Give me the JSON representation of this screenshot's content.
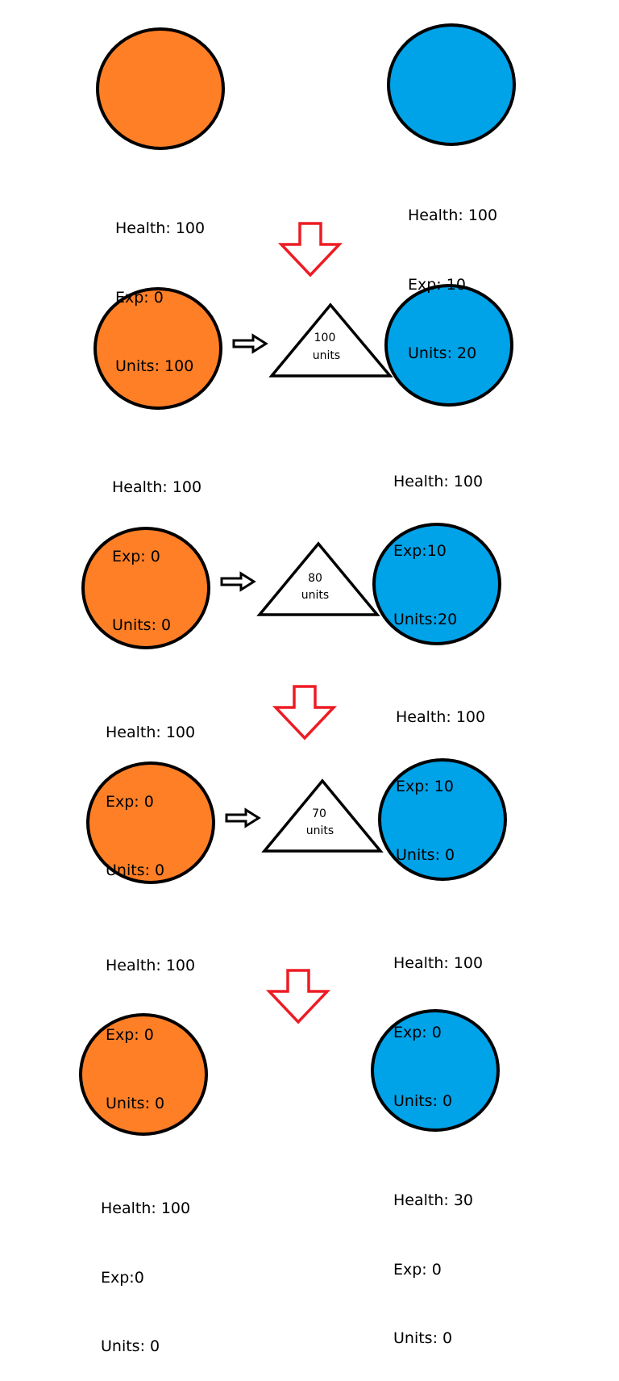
{
  "colors": {
    "orange": "#FF7F27",
    "blue": "#00A2E8",
    "outline": "#000000",
    "red_arrow": "#ED1C24",
    "white": "#FFFFFF"
  },
  "stages": [
    {
      "left": {
        "health": "Health: 100",
        "exp": "Exp: 0",
        "units": "Units: 100"
      },
      "right": {
        "health": "Health: 100",
        "exp": "Exp: 10",
        "units": "Units: 20"
      },
      "triangle": null
    },
    {
      "left": {
        "health": "Health: 100",
        "exp": "Exp: 0",
        "units": "Units: 0"
      },
      "right": {
        "health": "Health: 100",
        "exp": "Exp:10",
        "units": "Units:20"
      },
      "triangle": {
        "line1": "100",
        "line2": "units"
      }
    },
    {
      "left": {
        "health": "Health: 100",
        "exp": "Exp: 0",
        "units": "Units: 0"
      },
      "right": {
        "health": "Health: 100",
        "exp": "Exp: 10",
        "units": "Units: 0"
      },
      "triangle": {
        "line1": "80",
        "line2": "units"
      }
    },
    {
      "left": {
        "health": "Health: 100",
        "exp": "Exp: 0",
        "units": "Units: 0"
      },
      "right": {
        "health": "Health: 100",
        "exp": "Exp: 0",
        "units": "Units: 0"
      },
      "triangle": {
        "line1": "70",
        "line2": "units"
      }
    },
    {
      "left": {
        "health": "Health: 100",
        "exp": "Exp:0",
        "units": "Units: 0"
      },
      "right": {
        "health": "Health: 30",
        "exp": "Exp: 0",
        "units": "Units: 0"
      },
      "triangle": null
    }
  ]
}
